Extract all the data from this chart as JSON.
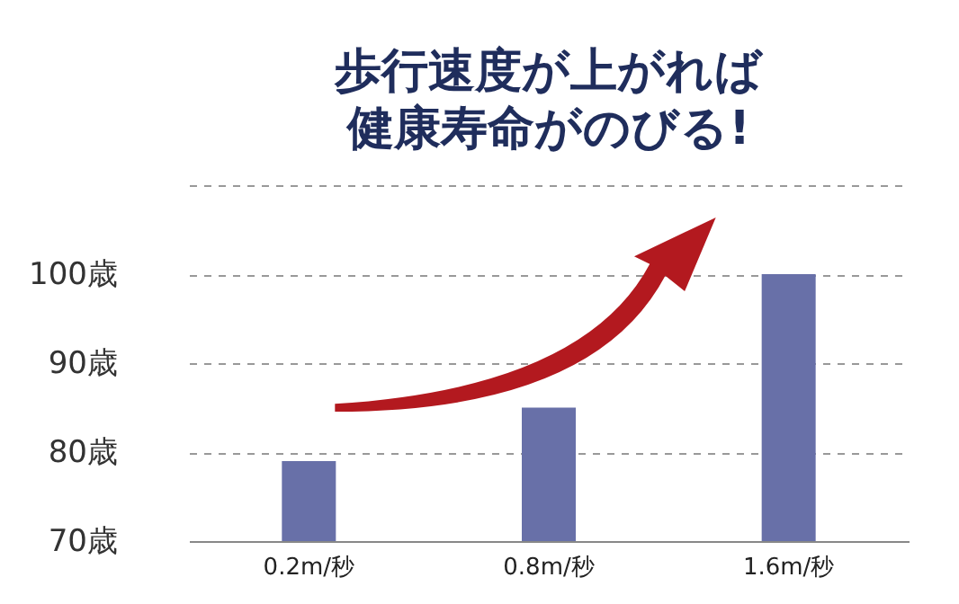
{
  "chart_data": {
    "type": "bar",
    "title": "歩行速度が上がれば",
    "subtitle": "健康寿命がのびる!",
    "categories": [
      "0.2m/秒",
      "0.8m/秒",
      "1.6m/秒"
    ],
    "series": [
      {
        "color": "#6870a8",
        "values": [
          79,
          85,
          100
        ]
      }
    ],
    "ylim": [
      70,
      110
    ],
    "yticks": [
      {
        "value": 70,
        "label": "70歳"
      },
      {
        "value": 80,
        "label": "80歳"
      },
      {
        "value": 90,
        "label": "90歳"
      },
      {
        "value": 100,
        "label": "100歳"
      },
      {
        "value": 110,
        "label": null
      }
    ],
    "grid": "y",
    "legend": false
  }
}
